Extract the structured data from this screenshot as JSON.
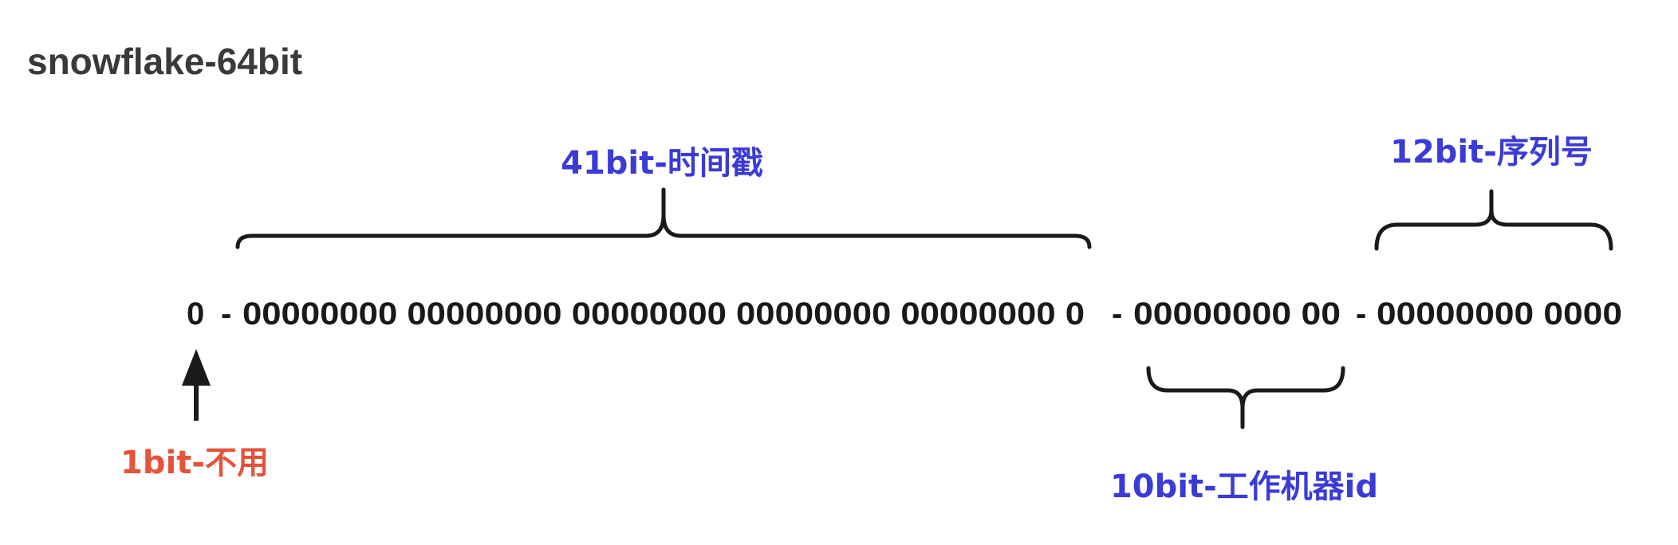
{
  "title": "snowflake-64bit",
  "bits": {
    "sign": "0",
    "sep_1": "-",
    "timestamp": "00000000 00000000 00000000 00000000 00000000 0",
    "sep_2": "-",
    "machine_id": "00000000 00",
    "sep_3": "-",
    "sequence": "00000000 0000"
  },
  "labels": {
    "timestamp": "41bit-时间戳",
    "sequence": "12bit-序列号",
    "machine_id": "10bit-工作机器id",
    "sign": "1bit-不用"
  },
  "colors": {
    "title": "#3a3a3a",
    "bits": "#1a1a1a",
    "label_blue": "#3b3bd6",
    "label_red": "#e5533a"
  }
}
